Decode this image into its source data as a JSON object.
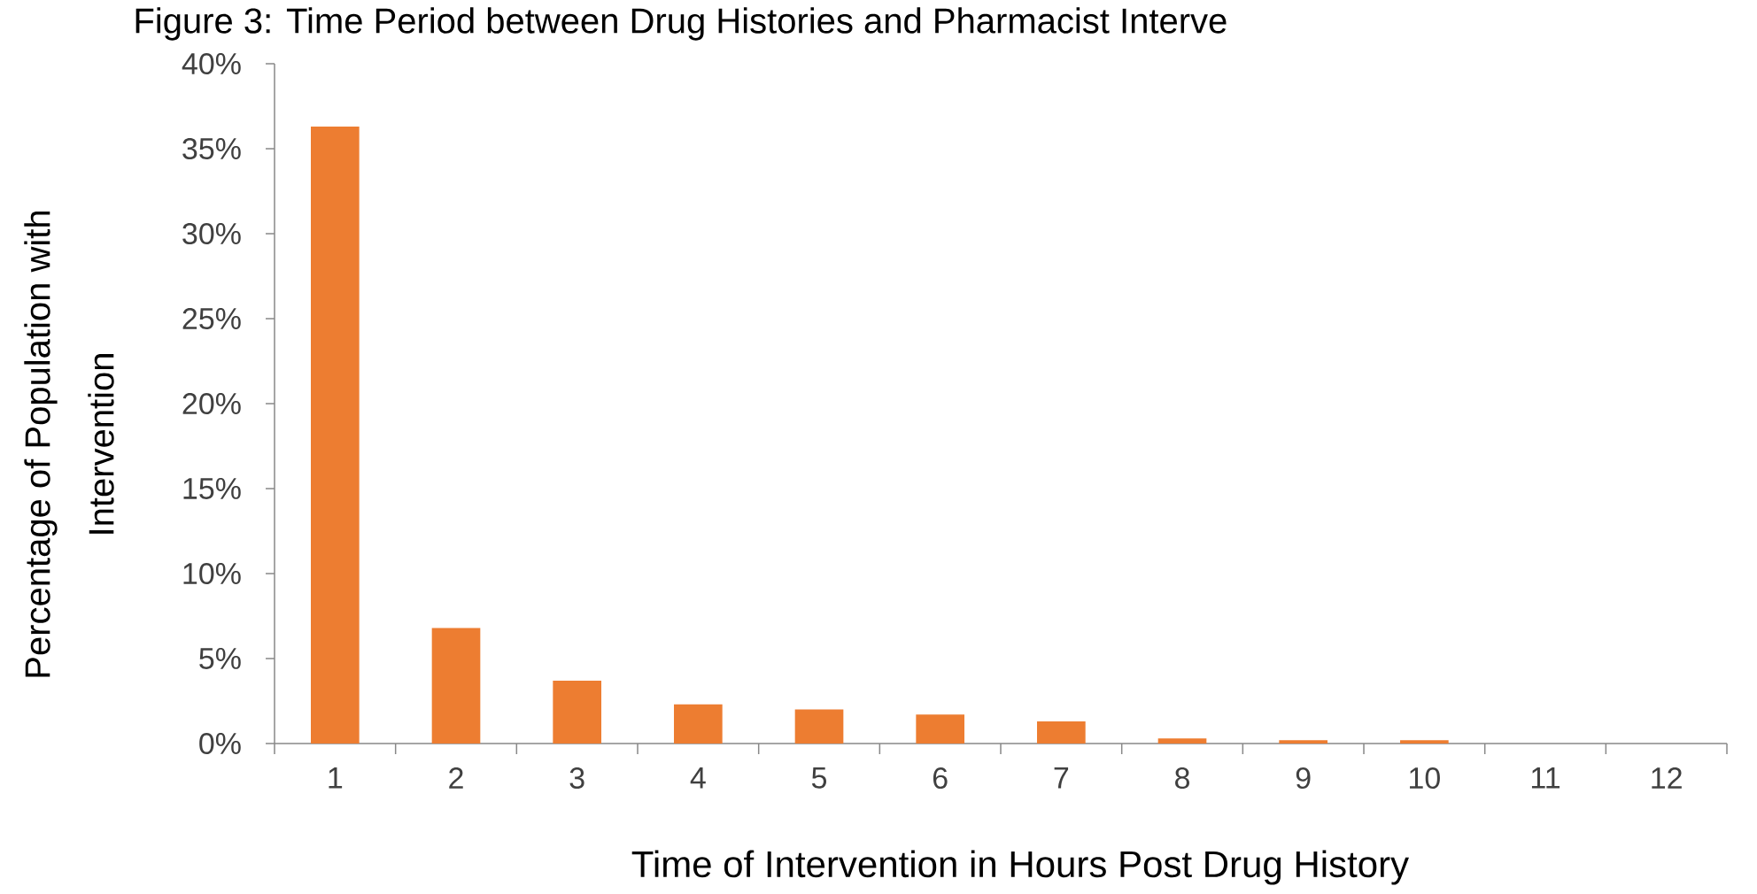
{
  "chart_data": {
    "type": "bar",
    "title": "Figure 3: Time Period between Drug Histories and Pharmacist Interve",
    "xlabel": "Time of Intervention in Hours Post Drug History",
    "ylabel": "Percentage of Population with Intervention",
    "categories": [
      "1",
      "2",
      "3",
      "4",
      "5",
      "6",
      "7",
      "8",
      "9",
      "10",
      "11",
      "12"
    ],
    "values": [
      36.3,
      6.8,
      3.7,
      2.3,
      2.0,
      1.7,
      1.3,
      0.3,
      0.2,
      0.2,
      0,
      0
    ],
    "color": "#ed7d31",
    "ylim": [
      0,
      40
    ],
    "yticks": [
      {
        "value": 0,
        "label": "0%"
      },
      {
        "value": 5,
        "label": "5%"
      },
      {
        "value": 10,
        "label": "10%"
      },
      {
        "value": 15,
        "label": "15%"
      },
      {
        "value": 20,
        "label": "20%"
      },
      {
        "value": 25,
        "label": "25%"
      },
      {
        "value": 30,
        "label": "30%"
      },
      {
        "value": 35,
        "label": "35%"
      },
      {
        "value": 40,
        "label": "40%"
      }
    ]
  }
}
